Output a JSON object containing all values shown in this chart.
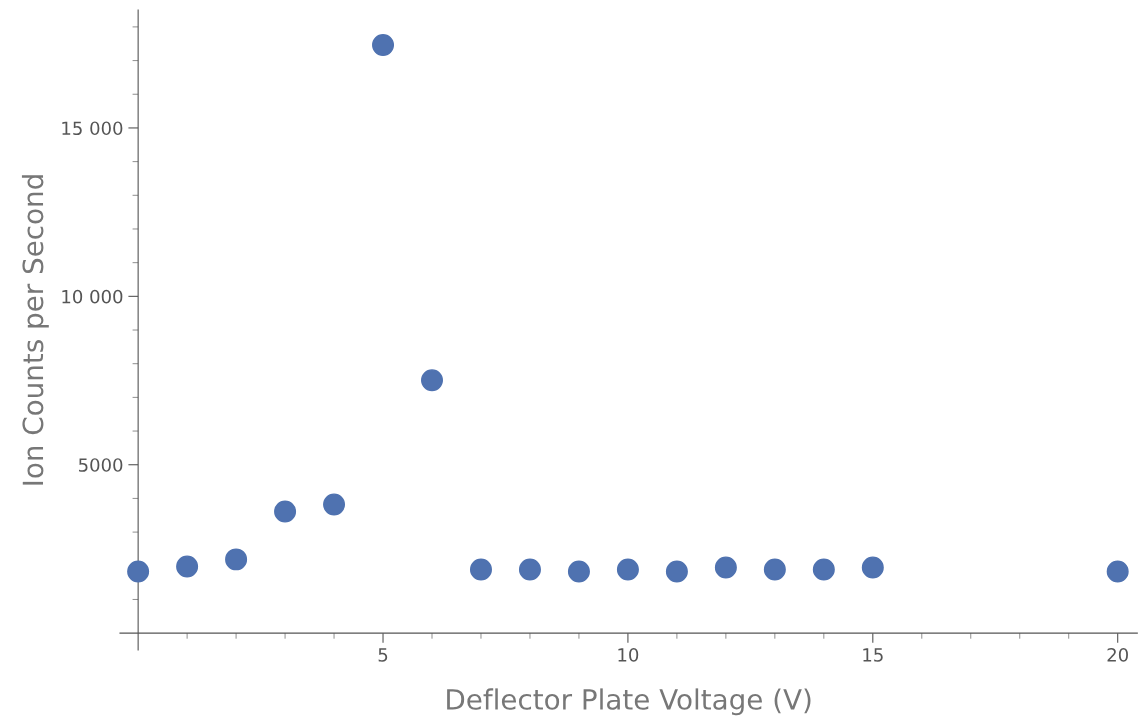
{
  "chart_data": {
    "type": "scatter",
    "xlabel": "Deflector Plate Voltage (V)",
    "ylabel": "Ion Counts per Second",
    "x": [
      0,
      1,
      2,
      3,
      4,
      5,
      6,
      7,
      8,
      9,
      10,
      11,
      12,
      13,
      14,
      15,
      20
    ],
    "series": [
      {
        "color": "#4f72b0",
        "values": [
          1830,
          1980,
          2190,
          3610,
          3820,
          17460,
          7510,
          1890,
          1890,
          1830,
          1890,
          1830,
          1950,
          1890,
          1890,
          1950,
          1830
        ]
      }
    ],
    "marker": "circle",
    "xlim": [
      -0.37,
      20.4
    ],
    "ylim": [
      -500,
      18500
    ],
    "xticks": [
      {
        "value": 1,
        "label": null
      },
      {
        "value": 2,
        "label": null
      },
      {
        "value": 3,
        "label": null
      },
      {
        "value": 4,
        "label": null
      },
      5,
      {
        "value": 6,
        "label": null
      },
      {
        "value": 7,
        "label": null
      },
      {
        "value": 8,
        "label": null
      },
      {
        "value": 9,
        "label": null
      },
      10,
      {
        "value": 11,
        "label": null
      },
      {
        "value": 12,
        "label": null
      },
      {
        "value": 13,
        "label": null
      },
      {
        "value": 14,
        "label": null
      },
      15,
      {
        "value": 16,
        "label": null
      },
      {
        "value": 17,
        "label": null
      },
      {
        "value": 18,
        "label": null
      },
      {
        "value": 19,
        "label": null
      },
      20
    ],
    "yticks": [
      {
        "value": 1000,
        "label": null
      },
      {
        "value": 2000,
        "label": null
      },
      {
        "value": 3000,
        "label": null
      },
      {
        "value": 4000,
        "label": null
      },
      5000,
      {
        "value": 6000,
        "label": null
      },
      {
        "value": 7000,
        "label": null
      },
      {
        "value": 8000,
        "label": null
      },
      {
        "value": 9000,
        "label": null
      },
      {
        "value": 10000,
        "label": "10 000"
      },
      {
        "value": 11000,
        "label": null
      },
      {
        "value": 12000,
        "label": null
      },
      {
        "value": 13000,
        "label": null
      },
      {
        "value": 14000,
        "label": null
      },
      {
        "value": 15000,
        "label": "15 000"
      },
      {
        "value": 16000,
        "label": null
      },
      {
        "value": 17000,
        "label": null
      },
      {
        "value": 18000,
        "label": null
      }
    ],
    "grid": false
  }
}
